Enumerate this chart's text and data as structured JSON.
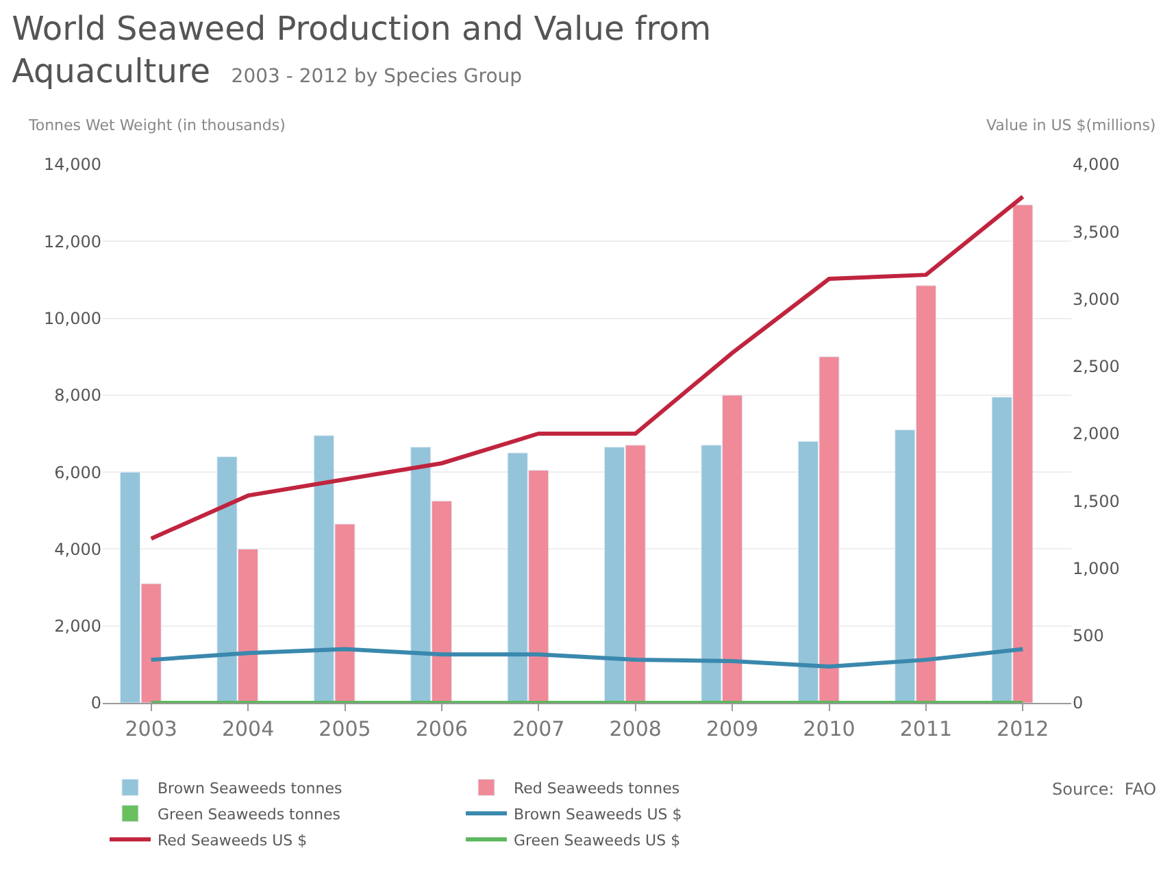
{
  "chart_data": {
    "type": "bar",
    "title": "World Seaweed Production and Value from Aquaculture",
    "subtitle": "2003 - 2012 by Species Group",
    "ylabel": "Tonnes Wet Weight (in thousands)",
    "y2label": "Value in US $(millions)",
    "categories": [
      "2003",
      "2004",
      "2005",
      "2006",
      "2007",
      "2008",
      "2009",
      "2010",
      "2011",
      "2012"
    ],
    "series": [
      {
        "name": "Brown Seaweeds tonnes",
        "color": "#93c4da",
        "values": [
          6000,
          6400,
          6950,
          6650,
          6500,
          6650,
          6700,
          6800,
          7100,
          7950
        ]
      },
      {
        "name": "Red Seaweeds tonnes",
        "color": "#f08a98",
        "values": [
          3100,
          4000,
          4650,
          5250,
          6050,
          6700,
          8000,
          9000,
          10850,
          12950
        ]
      },
      {
        "name": "Green Seaweeds tonnes",
        "color": "#6abf5e",
        "values": [
          null,
          null,
          null,
          null,
          null,
          null,
          null,
          null,
          null,
          null
        ]
      },
      {
        "name": "Brown Seaweeds US $",
        "type": "line",
        "axis": "y2",
        "color": "#3a88ad",
        "values": [
          320,
          370,
          400,
          360,
          360,
          320,
          310,
          270,
          320,
          400
        ]
      },
      {
        "name": "Red Seaweeds US $",
        "type": "line",
        "axis": "y2",
        "color": "#c0243e",
        "values": [
          1220,
          1540,
          1660,
          1780,
          2000,
          2000,
          2600,
          3150,
          3180,
          3760
        ]
      },
      {
        "name": "Green Seaweeds US $",
        "type": "line",
        "axis": "y2",
        "color": "#5cb85c",
        "values": [
          0,
          0,
          0,
          0,
          0,
          0,
          0,
          0,
          0,
          0
        ]
      }
    ],
    "ylim": [
      0,
      14000
    ],
    "yticks": [
      {
        "value": 0,
        "label": "0"
      },
      {
        "value": 2000,
        "label": "2,000"
      },
      {
        "value": 4000,
        "label": "4,000"
      },
      {
        "value": 6000,
        "label": "6,000"
      },
      {
        "value": 8000,
        "label": "8,000"
      },
      {
        "value": 10000,
        "label": "10,000"
      },
      {
        "value": 12000,
        "label": "12,000"
      },
      {
        "value": 14000,
        "label": "14,000"
      }
    ],
    "y2lim": [
      0,
      4000
    ],
    "y2ticks": [
      {
        "value": 0,
        "label": "0"
      },
      {
        "value": 500,
        "label": "500"
      },
      {
        "value": 1000,
        "label": "1,000"
      },
      {
        "value": 1500,
        "label": "1,500"
      },
      {
        "value": 2000,
        "label": "2,000"
      },
      {
        "value": 2500,
        "label": "2,500"
      },
      {
        "value": 3000,
        "label": "3,000"
      },
      {
        "value": 3500,
        "label": "3,500"
      },
      {
        "value": 4000,
        "label": "4,000"
      }
    ],
    "grid": "y",
    "legend": "bottom",
    "marker": "none",
    "line_style": "solid",
    "annotations": [
      "Source:  FAO"
    ]
  }
}
